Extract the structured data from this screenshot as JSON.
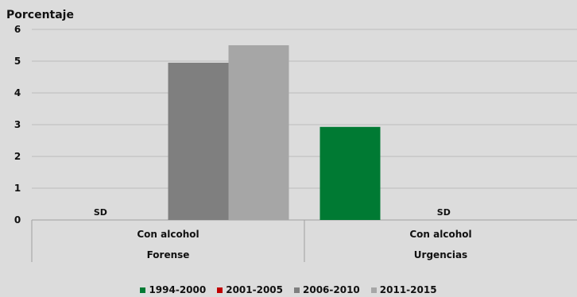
{
  "chart_data": {
    "type": "bar",
    "ylabel": "Porcentaje",
    "ylim": [
      0,
      6
    ],
    "yticks": [
      0,
      1,
      2,
      3,
      4,
      5,
      6
    ],
    "grid": true,
    "legend_position": "bottom",
    "groups": [
      {
        "top_label": "Con alcohol",
        "bottom_label": "Forense",
        "annotation": "SD"
      },
      {
        "top_label": "Con alcohol",
        "bottom_label": "Urgencias",
        "annotation": "SD"
      }
    ],
    "series": [
      {
        "name": "1994-2000",
        "color": "#007a33",
        "values": [
          null,
          2.93
        ]
      },
      {
        "name": "2001-2005",
        "color": "#c00000",
        "values": [
          null,
          null
        ]
      },
      {
        "name": "2006-2010",
        "color": "#7f7f7f",
        "values": [
          4.95,
          null
        ]
      },
      {
        "name": "2011-2015",
        "color": "#a6a6a6",
        "values": [
          5.5,
          null
        ]
      }
    ]
  }
}
